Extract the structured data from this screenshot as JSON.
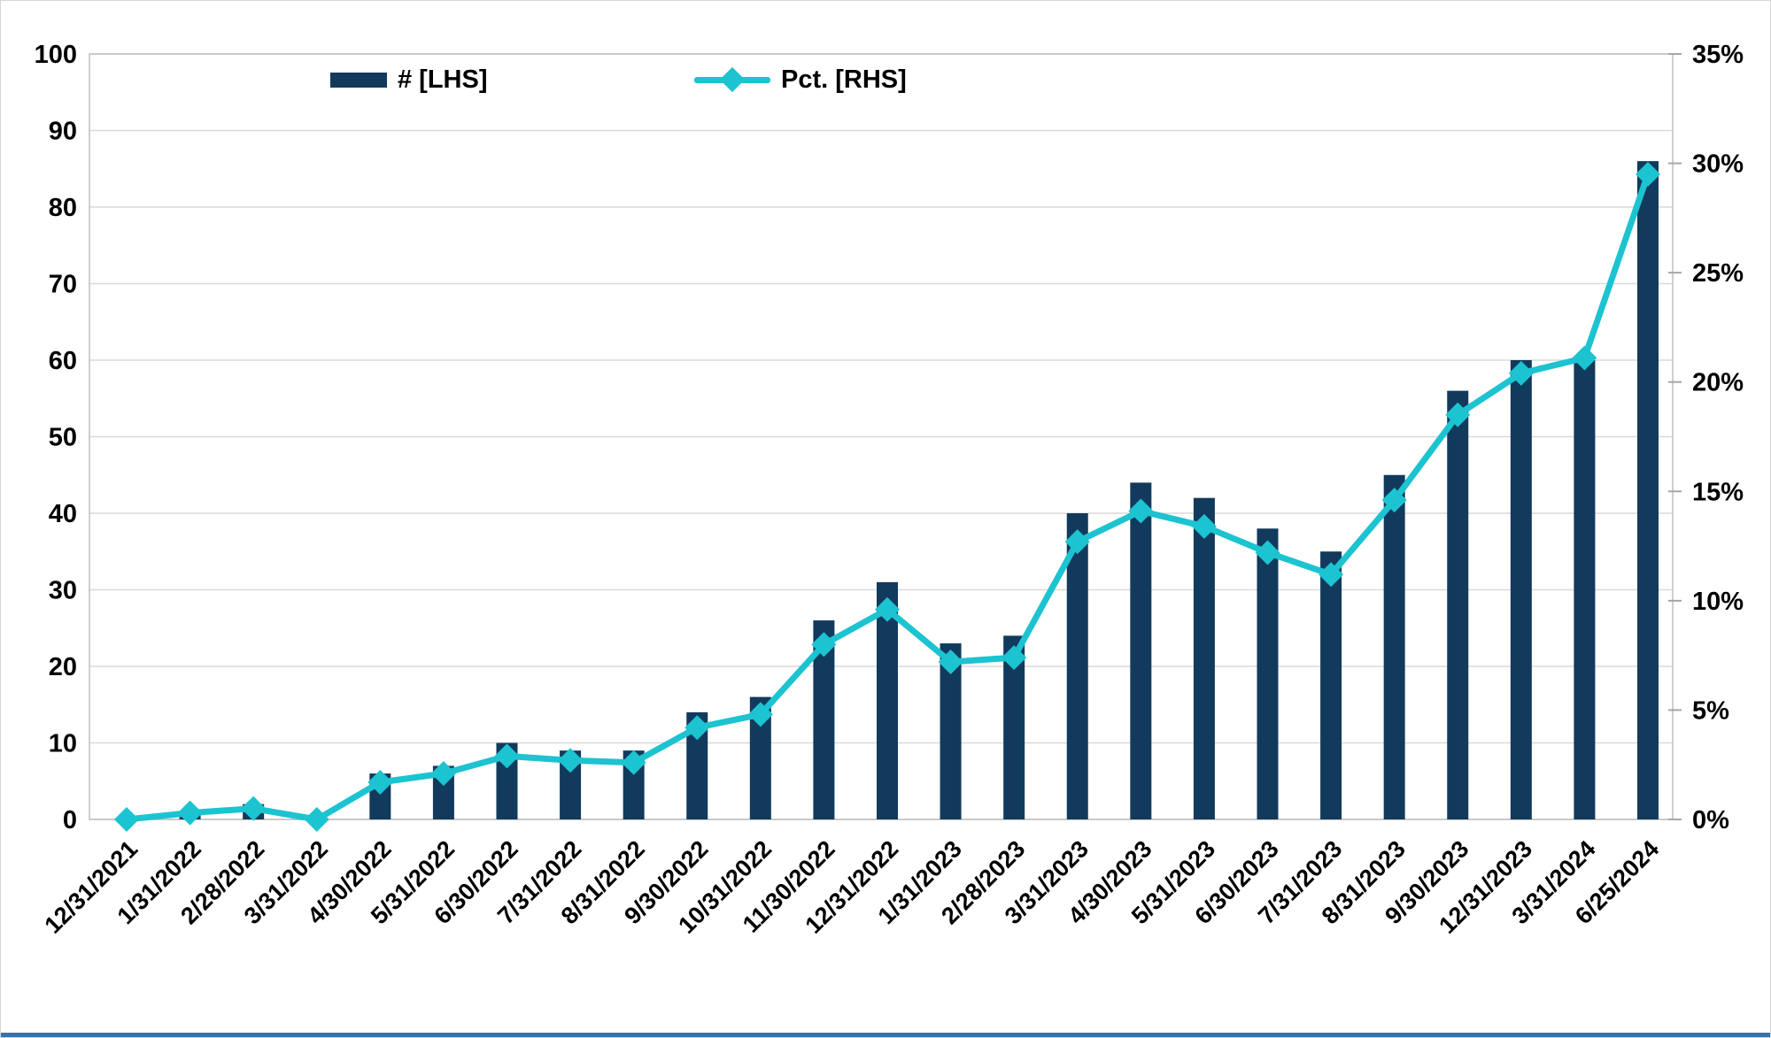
{
  "chart_data": {
    "type": "bar",
    "subtype": "bar+line dual axis",
    "title": "",
    "xlabel": "",
    "ylabel_left": "",
    "ylabel_right": "",
    "grid": true,
    "legend_position": "top-inside",
    "categories": [
      "12/31/2021",
      "1/31/2022",
      "2/28/2022",
      "3/31/2022",
      "4/30/2022",
      "5/31/2022",
      "6/30/2022",
      "7/31/2022",
      "8/31/2022",
      "9/30/2022",
      "10/31/2022",
      "11/30/2022",
      "12/31/2022",
      "1/31/2023",
      "2/28/2023",
      "3/31/2023",
      "4/30/2023",
      "5/31/2023",
      "6/30/2023",
      "7/31/2023",
      "8/31/2023",
      "9/30/2023",
      "12/31/2023",
      "3/31/2024",
      "6/25/2024"
    ],
    "series": [
      {
        "name": "# [LHS]",
        "type": "bar",
        "axis": "left",
        "color": "#123A5C",
        "values": [
          0,
          1,
          2,
          0,
          6,
          7,
          10,
          9,
          9,
          14,
          16,
          26,
          31,
          23,
          24,
          40,
          44,
          42,
          38,
          35,
          45,
          56,
          60,
          60,
          86
        ]
      },
      {
        "name": "Pct. [RHS]",
        "type": "line",
        "axis": "right",
        "marker": "diamond",
        "color": "#1CC3D0",
        "values": [
          0,
          0.3,
          0.5,
          0,
          1.7,
          2.1,
          2.9,
          2.7,
          2.6,
          4.2,
          4.8,
          8.0,
          9.6,
          7.2,
          7.4,
          12.7,
          14.1,
          13.4,
          12.2,
          11.2,
          14.6,
          18.5,
          20.4,
          21.1,
          29.5
        ]
      }
    ],
    "left_axis": {
      "min": 0,
      "max": 100,
      "step": 10,
      "tick_labels": [
        "0",
        "10",
        "20",
        "30",
        "40",
        "50",
        "60",
        "70",
        "80",
        "90",
        "100"
      ]
    },
    "right_axis": {
      "min": 0,
      "max": 35,
      "step": 5,
      "tick_labels": [
        "0%",
        "5%",
        "10%",
        "15%",
        "20%",
        "25%",
        "30%",
        "35%"
      ]
    }
  },
  "colors": {
    "bar": "#123A5C",
    "line": "#1CC3D0",
    "gridline": "#D9D9D9",
    "frame": "#BFBFBF",
    "tick": "#A6A6A6",
    "text": "#000000",
    "footer_strip": "#2E74B5",
    "background": "#FFFFFF"
  }
}
